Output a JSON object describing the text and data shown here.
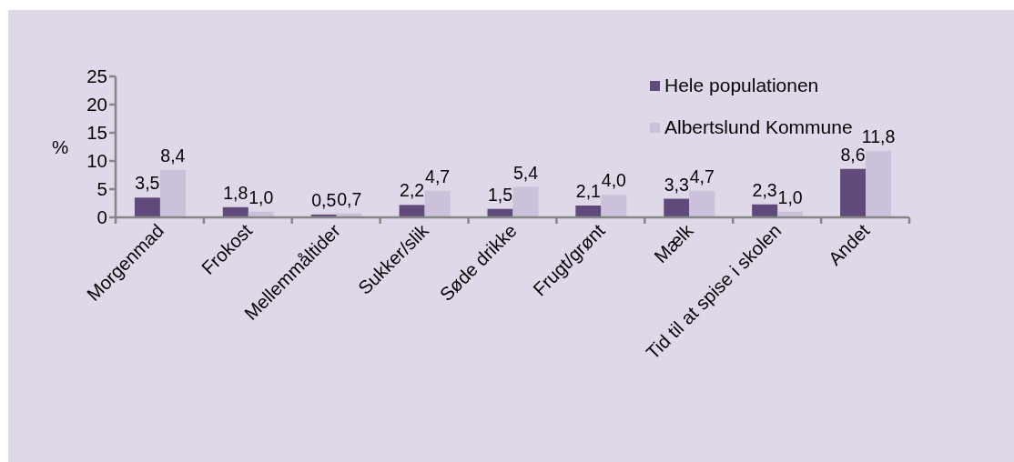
{
  "chart_data": {
    "type": "bar",
    "ylabel": "%",
    "categories": [
      "Morgenmad",
      "Frokost",
      "Mellemmåltider",
      "Sukker/slik",
      "Søde drikke",
      "Frugt/grønt",
      "Mælk",
      "Tid til at spise i skolen",
      "Andet"
    ],
    "series": [
      {
        "name": "Hele populationen",
        "color": "#604a7b",
        "values": [
          3.5,
          1.8,
          0.5,
          2.2,
          1.5,
          2.1,
          3.3,
          2.3,
          8.6
        ],
        "value_labels": [
          "3,5",
          "1,8",
          "0,5",
          "2,2",
          "1,5",
          "2,1",
          "3,3",
          "2,3",
          "8,6"
        ]
      },
      {
        "name": "Albertslund Kommune",
        "color": "#ccc1da",
        "values": [
          8.4,
          1.0,
          0.7,
          4.7,
          5.4,
          4.0,
          4.7,
          1.0,
          11.8
        ],
        "value_labels": [
          "8,4",
          "1,0",
          "0,7",
          "4,7",
          "5,4",
          "4,0",
          "4,7",
          "1,0",
          "11,8"
        ]
      }
    ],
    "ylim": [
      0,
      25
    ],
    "yticks": [
      0,
      5,
      10,
      15,
      20,
      25
    ],
    "legend": "top right"
  }
}
